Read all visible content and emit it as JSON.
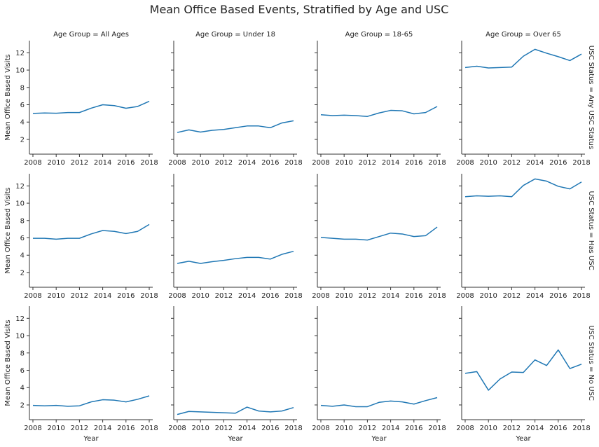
{
  "figure": {
    "title": "Mean Office Based Events, Stratified by Age and USC"
  },
  "chart_data": {
    "type": "line",
    "title": "Mean Office Based Events, Stratified by Age and USC",
    "xlabel": "Year",
    "ylabel": "Mean Office Based Visits",
    "xlim": [
      2007.7,
      2018.3
    ],
    "ylim": [
      0.3,
      13.4
    ],
    "xticks": [
      2008,
      2010,
      2012,
      2014,
      2016,
      2018
    ],
    "yticks": [
      2,
      4,
      6,
      8,
      10,
      12
    ],
    "grid": false,
    "line_color": "#1f77b4",
    "x": [
      2008,
      2009,
      2010,
      2011,
      2012,
      2013,
      2014,
      2015,
      2016,
      2017,
      2018
    ],
    "columns": [
      "Age Group = All Ages",
      "Age Group = Under 18",
      "Age Group = 18-65",
      "Age Group = Over 65"
    ],
    "rows": [
      "USC Status = Any USC Status",
      "USC Status = Has USC",
      "USC Status = No USC"
    ],
    "panels": [
      [
        {
          "values": [
            5.0,
            5.05,
            5.02,
            5.1,
            5.1,
            5.6,
            6.0,
            5.9,
            5.6,
            5.8,
            6.4
          ]
        },
        {
          "values": [
            2.8,
            3.1,
            2.85,
            3.05,
            3.15,
            3.35,
            3.55,
            3.55,
            3.35,
            3.9,
            4.15
          ]
        },
        {
          "values": [
            4.85,
            4.75,
            4.8,
            4.75,
            4.65,
            5.05,
            5.35,
            5.3,
            4.95,
            5.1,
            5.8
          ]
        },
        {
          "values": [
            10.3,
            10.45,
            10.25,
            10.3,
            10.35,
            11.6,
            12.4,
            11.95,
            11.55,
            11.1,
            11.85
          ]
        }
      ],
      [
        {
          "values": [
            5.95,
            5.95,
            5.85,
            5.95,
            5.95,
            6.45,
            6.85,
            6.75,
            6.5,
            6.75,
            7.55
          ]
        },
        {
          "values": [
            3.05,
            3.3,
            3.05,
            3.25,
            3.4,
            3.6,
            3.75,
            3.75,
            3.55,
            4.1,
            4.45
          ]
        },
        {
          "values": [
            6.05,
            5.95,
            5.85,
            5.85,
            5.75,
            6.15,
            6.55,
            6.45,
            6.15,
            6.25,
            7.25
          ]
        },
        {
          "values": [
            10.75,
            10.85,
            10.8,
            10.85,
            10.75,
            12.05,
            12.8,
            12.55,
            11.95,
            11.65,
            12.45
          ]
        }
      ],
      [
        {
          "values": [
            1.95,
            1.9,
            1.95,
            1.85,
            1.9,
            2.35,
            2.6,
            2.55,
            2.35,
            2.65,
            3.05
          ]
        },
        {
          "values": [
            0.9,
            1.25,
            1.2,
            1.15,
            1.1,
            1.05,
            1.75,
            1.3,
            1.2,
            1.3,
            1.7
          ]
        },
        {
          "values": [
            1.95,
            1.85,
            2.0,
            1.8,
            1.8,
            2.3,
            2.45,
            2.35,
            2.1,
            2.5,
            2.85
          ]
        },
        {
          "values": [
            5.65,
            5.85,
            3.7,
            5.0,
            5.8,
            5.75,
            7.2,
            6.55,
            8.35,
            6.2,
            6.7
          ]
        }
      ]
    ]
  }
}
